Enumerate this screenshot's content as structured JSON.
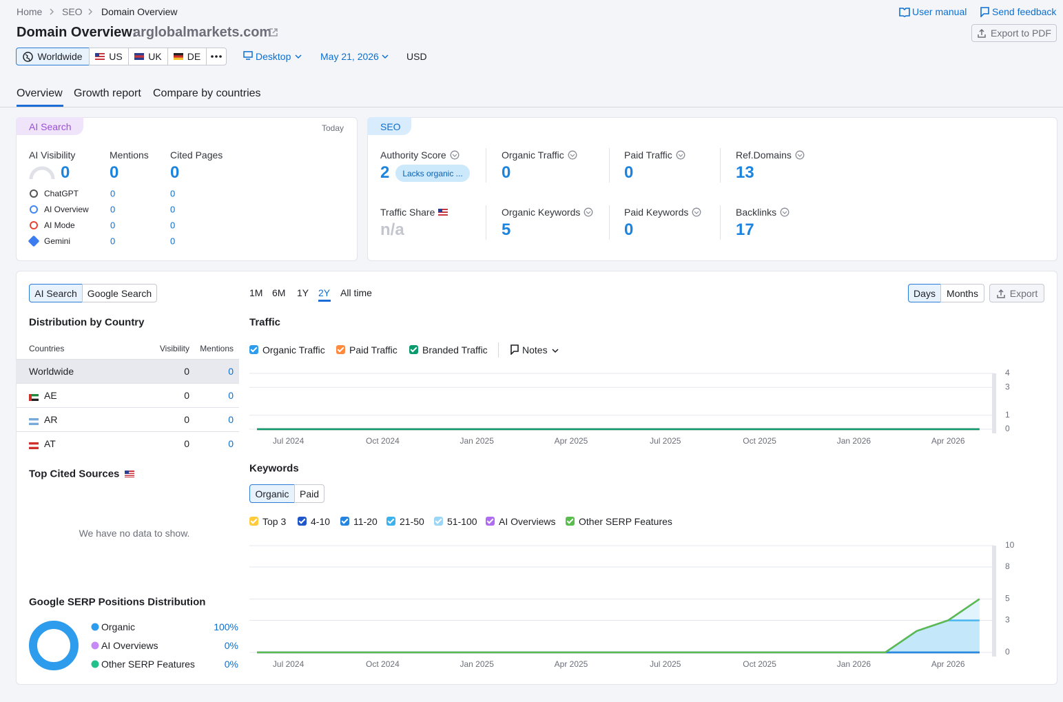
{
  "breadcrumbs": [
    "Home",
    "SEO",
    "Domain Overview"
  ],
  "header": {
    "title": "Domain Overview:",
    "domain": "arglobalmarkets.com",
    "user_manual": "User manual",
    "send_feedback": "Send feedback",
    "export_pdf": "Export to PDF"
  },
  "filters": {
    "databases": [
      "Worldwide",
      "US",
      "UK",
      "DE"
    ],
    "device": "Desktop",
    "date": "May 21, 2026",
    "currency": "USD"
  },
  "tabs": [
    "Overview",
    "Growth report",
    "Compare by countries"
  ],
  "ai_search": {
    "label": "AI Search",
    "date": "Today",
    "metrics": [
      {
        "name": "AI Visibility",
        "value": 0
      },
      {
        "name": "Mentions",
        "value": 0
      },
      {
        "name": "Cited Pages",
        "value": 0
      }
    ],
    "sources": [
      {
        "name": "ChatGPT",
        "mentions": 0,
        "cited": 0
      },
      {
        "name": "AI Overview",
        "mentions": 0,
        "cited": 0
      },
      {
        "name": "AI Mode",
        "mentions": 0,
        "cited": 0
      },
      {
        "name": "Gemini",
        "mentions": 0,
        "cited": 0
      }
    ]
  },
  "seo": {
    "label": "SEO",
    "metrics": [
      {
        "name": "Authority Score",
        "value": 2,
        "badge": "Lacks organic ..."
      },
      {
        "name": "Organic Traffic",
        "value": 0
      },
      {
        "name": "Paid Traffic",
        "value": 0
      },
      {
        "name": "Ref.Domains",
        "value": 13
      },
      {
        "name": "Traffic Share",
        "value": "n/a"
      },
      {
        "name": "Organic Keywords",
        "value": 5
      },
      {
        "name": "Paid Keywords",
        "value": 0
      },
      {
        "name": "Backlinks",
        "value": 17
      }
    ]
  },
  "left_panel": {
    "toggle": [
      "AI Search",
      "Google Search"
    ],
    "distribution": {
      "title": "Distribution by Country",
      "columns": [
        "Countries",
        "Visibility",
        "Mentions"
      ],
      "rows": [
        [
          "Worldwide",
          0,
          0
        ],
        [
          "AE",
          0,
          0
        ],
        [
          "AR",
          0,
          0
        ],
        [
          "AT",
          0,
          0
        ]
      ]
    },
    "top_cited": {
      "title": "Top Cited Sources",
      "empty": "We have no data to show."
    }
  },
  "periods": [
    "1M",
    "6M",
    "1Y",
    "2Y",
    "All time"
  ],
  "granularity": [
    "Days",
    "Months"
  ],
  "export": "Export",
  "notes": "Notes",
  "keywords_toggle": [
    "Organic",
    "Paid"
  ],
  "chart_data": [
    {
      "type": "line",
      "title": "Traffic",
      "categories": [
        "Jun 2024",
        "Jul 2024",
        "Aug 2024",
        "Sep 2024",
        "Oct 2024",
        "Nov 2024",
        "Dec 2024",
        "Jan 2025",
        "Feb 2025",
        "Mar 2025",
        "Apr 2025",
        "May 2025",
        "Jun 2025",
        "Jul 2025",
        "Aug 2025",
        "Sep 2025",
        "Oct 2025",
        "Nov 2025",
        "Dec 2025",
        "Jan 2026",
        "Feb 2026",
        "Mar 2026",
        "Apr 2026",
        "May 2026"
      ],
      "xticks": [
        "Jul 2024",
        "Oct 2024",
        "Jan 2025",
        "Apr 2025",
        "Jul 2025",
        "Oct 2025",
        "Jan 2026",
        "Apr 2026"
      ],
      "series": [
        {
          "name": "Organic Traffic",
          "color": "#2d9cec",
          "values": [
            0,
            0,
            0,
            0,
            0,
            0,
            0,
            0,
            0,
            0,
            0,
            0,
            0,
            0,
            0,
            0,
            0,
            0,
            0,
            0,
            0,
            0,
            0,
            0
          ]
        },
        {
          "name": "Paid Traffic",
          "color": "#ff8a3d",
          "values": [
            0,
            0,
            0,
            0,
            0,
            0,
            0,
            0,
            0,
            0,
            0,
            0,
            0,
            0,
            0,
            0,
            0,
            0,
            0,
            0,
            0,
            0,
            0,
            0
          ]
        },
        {
          "name": "Branded Traffic",
          "color": "#0a9a6e",
          "values": [
            0,
            0,
            0,
            0,
            0,
            0,
            0,
            0,
            0,
            0,
            0,
            0,
            0,
            0,
            0,
            0,
            0,
            0,
            0,
            0,
            0,
            0,
            0,
            0
          ]
        }
      ],
      "ylim": [
        0,
        4
      ],
      "yticks": [
        0,
        1,
        3,
        4
      ],
      "grid": true
    },
    {
      "type": "line",
      "title": "Keywords",
      "stacked": true,
      "categories": [
        "Jun 2024",
        "Jul 2024",
        "Aug 2024",
        "Sep 2024",
        "Oct 2024",
        "Nov 2024",
        "Dec 2024",
        "Jan 2025",
        "Feb 2025",
        "Mar 2025",
        "Apr 2025",
        "May 2025",
        "Jun 2025",
        "Jul 2025",
        "Aug 2025",
        "Sep 2025",
        "Oct 2025",
        "Nov 2025",
        "Dec 2025",
        "Jan 2026",
        "Feb 2026",
        "Mar 2026",
        "Apr 2026",
        "May 2026"
      ],
      "xticks": [
        "Jul 2024",
        "Oct 2024",
        "Jan 2025",
        "Apr 2025",
        "Jul 2025",
        "Oct 2025",
        "Jan 2026",
        "Apr 2026"
      ],
      "series": [
        {
          "name": "Top 3",
          "color": "#ffcb3d",
          "values": [
            0,
            0,
            0,
            0,
            0,
            0,
            0,
            0,
            0,
            0,
            0,
            0,
            0,
            0,
            0,
            0,
            0,
            0,
            0,
            0,
            0,
            0,
            0,
            0
          ]
        },
        {
          "name": "4-10",
          "color": "#1f56c9",
          "values": [
            0,
            0,
            0,
            0,
            0,
            0,
            0,
            0,
            0,
            0,
            0,
            0,
            0,
            0,
            0,
            0,
            0,
            0,
            0,
            0,
            0,
            0,
            0,
            0
          ]
        },
        {
          "name": "11-20",
          "color": "#2584e0",
          "values": [
            0,
            0,
            0,
            0,
            0,
            0,
            0,
            0,
            0,
            0,
            0,
            0,
            0,
            0,
            0,
            0,
            0,
            0,
            0,
            0,
            0,
            0,
            0,
            0
          ]
        },
        {
          "name": "21-50",
          "color": "#3bb1ee",
          "values": [
            0,
            0,
            0,
            0,
            0,
            0,
            0,
            0,
            0,
            0,
            0,
            0,
            0,
            0,
            0,
            0,
            0,
            0,
            0,
            0,
            0,
            2,
            3,
            3
          ]
        },
        {
          "name": "51-100",
          "color": "#9cd6f7",
          "values": [
            0,
            0,
            0,
            0,
            0,
            0,
            0,
            0,
            0,
            0,
            0,
            0,
            0,
            0,
            0,
            0,
            0,
            0,
            0,
            0,
            0,
            0,
            0,
            2
          ]
        },
        {
          "name": "AI Overviews",
          "color": "#b06cf0",
          "values": [
            0,
            0,
            0,
            0,
            0,
            0,
            0,
            0,
            0,
            0,
            0,
            0,
            0,
            0,
            0,
            0,
            0,
            0,
            0,
            0,
            0,
            0,
            0,
            0
          ]
        },
        {
          "name": "Other SERP Features",
          "color": "#58bd4a",
          "values": [
            0,
            0,
            0,
            0,
            0,
            0,
            0,
            0,
            0,
            0,
            0,
            0,
            0,
            0,
            0,
            0,
            0,
            0,
            0,
            0,
            0,
            0,
            0,
            0
          ]
        }
      ],
      "ylim": [
        0,
        10
      ],
      "yticks": [
        0,
        3,
        5,
        8,
        10
      ],
      "grid": true
    },
    {
      "type": "pie",
      "title": "Google SERP Positions Distribution",
      "categories": [
        "Organic",
        "AI Overviews",
        "Other SERP Features"
      ],
      "values": [
        100,
        0,
        0
      ],
      "value_labels": [
        "100%",
        "0%",
        "0%"
      ],
      "colors": [
        "#2d9cec",
        "#c58af5",
        "#22c08a"
      ]
    }
  ]
}
